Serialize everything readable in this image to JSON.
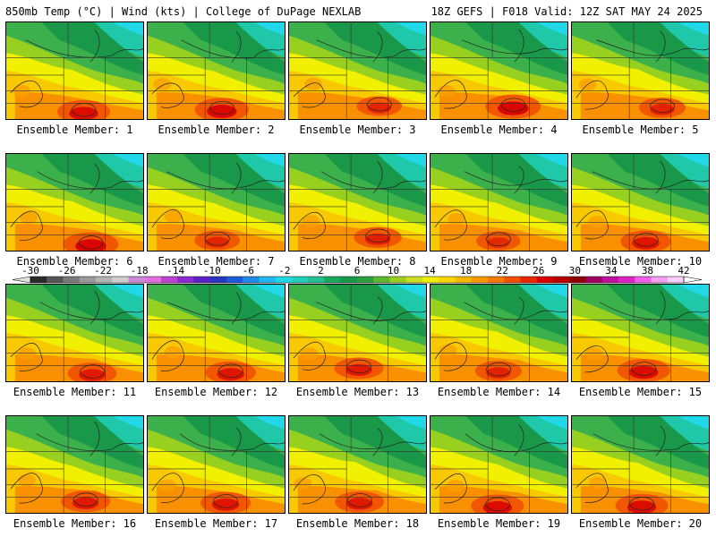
{
  "header": {
    "title": "850mb Temp (°C) | Wind (kts) | College of DuPage NEXLAB",
    "run_info": "18Z GEFS | F018 Valid: 12Z SAT MAY 24 2025"
  },
  "colorbar": {
    "tick_labels": [
      "-30",
      "-26",
      "-22",
      "-18",
      "-14",
      "-10",
      "-6",
      "-2",
      "2",
      "6",
      "10",
      "14",
      "18",
      "22",
      "26",
      "30",
      "34",
      "38",
      "42"
    ],
    "colors": [
      "#2a2a2a",
      "#555555",
      "#7a7a7a",
      "#9a9a9a",
      "#b4b4b4",
      "#cfcfcf",
      "#c98ad6",
      "#e070e0",
      "#c040d0",
      "#8a2ad0",
      "#5a20c8",
      "#2838c0",
      "#1c5ad8",
      "#1e8ce8",
      "#20b8f0",
      "#20d8e8",
      "#20d0b8",
      "#20c090",
      "#18a860",
      "#189848",
      "#2aa040",
      "#60b830",
      "#98d020",
      "#c8e020",
      "#f0f000",
      "#f8d800",
      "#f8b800",
      "#f89800",
      "#f87800",
      "#f05000",
      "#e82800",
      "#d80000",
      "#b80000",
      "#900000",
      "#a00060",
      "#c010a0",
      "#e020c8",
      "#f060e8",
      "#f8a0f0",
      "#ffd0ff"
    ]
  },
  "members": [
    {
      "label": "Ensemble Member: 1",
      "hot": 0.85
    },
    {
      "label": "Ensemble Member: 2",
      "hot": 0.9
    },
    {
      "label": "Ensemble Member: 3",
      "hot": 0.55
    },
    {
      "label": "Ensemble Member: 4",
      "hot": 0.95
    },
    {
      "label": "Ensemble Member: 5",
      "hot": 0.6
    },
    {
      "label": "Ensemble Member: 6",
      "hot": 0.95
    },
    {
      "label": "Ensemble Member: 7",
      "hot": 0.55
    },
    {
      "label": "Ensemble Member: 8",
      "hot": 0.65
    },
    {
      "label": "Ensemble Member: 9",
      "hot": 0.5
    },
    {
      "label": "Ensemble Member: 10",
      "hot": 0.75
    },
    {
      "label": "Ensemble Member: 11",
      "hot": 0.7
    },
    {
      "label": "Ensemble Member: 12",
      "hot": 0.75
    },
    {
      "label": "Ensemble Member: 13",
      "hot": 0.7
    },
    {
      "label": "Ensemble Member: 14",
      "hot": 0.6
    },
    {
      "label": "Ensemble Member: 15",
      "hot": 0.85
    },
    {
      "label": "Ensemble Member: 16",
      "hot": 0.7
    },
    {
      "label": "Ensemble Member: 17",
      "hot": 0.75
    },
    {
      "label": "Ensemble Member: 18",
      "hot": 0.7
    },
    {
      "label": "Ensemble Member: 19",
      "hot": 0.85
    },
    {
      "label": "Ensemble Member: 20",
      "hot": 0.85
    }
  ]
}
